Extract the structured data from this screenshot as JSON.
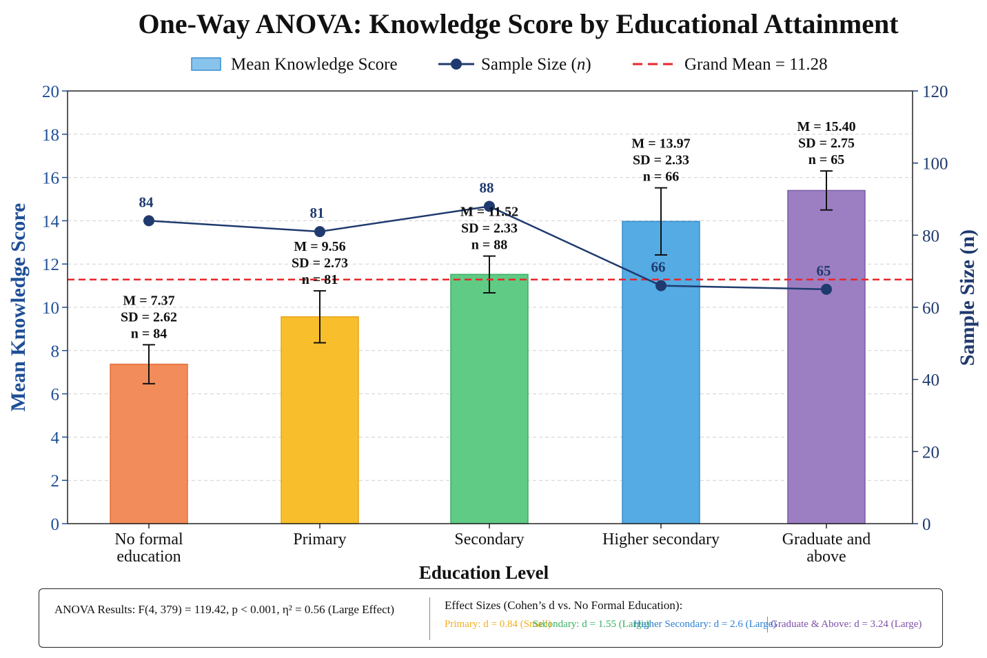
{
  "chart_data": {
    "type": "bar",
    "title": "One-Way ANOVA: Knowledge Score by Educational Attainment",
    "xlabel": "Education Level",
    "ylabel": "Mean Knowledge Score",
    "y2label": "Sample Size (n)",
    "ylim": [
      0,
      20
    ],
    "y2lim": [
      0,
      120
    ],
    "yticks": [
      0,
      2,
      4,
      6,
      8,
      10,
      12,
      14,
      16,
      18,
      20
    ],
    "y2ticks": [
      0,
      20,
      40,
      60,
      80,
      100,
      120
    ],
    "grid": true,
    "legend_position": "top",
    "legend": {
      "bar": "Mean Knowledge Score",
      "line_prefix": "Sample Size (",
      "line_var": "n",
      "line_suffix": ")",
      "grand_mean": "Grand Mean = 11.28"
    },
    "categories": [
      "No formal education",
      "Primary",
      "Secondary",
      "Higher secondary",
      "Graduate and above"
    ],
    "category_lines": [
      [
        "No formal",
        "education"
      ],
      [
        "Primary"
      ],
      [
        "Secondary"
      ],
      [
        "Higher secondary"
      ],
      [
        "Graduate and",
        "above"
      ]
    ],
    "series": [
      {
        "name": "Mean Knowledge Score",
        "type": "bar",
        "values": [
          7.37,
          9.56,
          11.52,
          13.97,
          15.4
        ],
        "sd": [
          2.62,
          2.73,
          2.33,
          2.33,
          2.75
        ],
        "n": [
          84,
          81,
          88,
          66,
          65
        ],
        "colors": [
          "#f28c5a",
          "#f9be2c",
          "#5fcb84",
          "#55abe3",
          "#9c7fc2"
        ],
        "edge_colors": [
          "#e5703a",
          "#e6a617",
          "#3fae63",
          "#3a8fcf",
          "#7d5aa8"
        ]
      },
      {
        "name": "Sample Size (n)",
        "type": "line",
        "axis": "right",
        "values": [
          84,
          81,
          88,
          66,
          65
        ],
        "color": "#1f3a6e"
      }
    ],
    "error_bar_halfwidths": [
      0.9,
      1.2,
      0.85,
      1.55,
      0.9
    ],
    "bar_labels": [
      [
        "M = 7.37",
        "SD = 2.62",
        "n = 84"
      ],
      [
        "M = 9.56",
        "SD = 2.73",
        "n = 81"
      ],
      [
        "M = 11.52",
        "SD = 2.33",
        "n = 88"
      ],
      [
        "M = 13.97",
        "SD = 2.33",
        "n = 66"
      ],
      [
        "M = 15.40",
        "SD = 2.75",
        "n = 65"
      ]
    ],
    "grand_mean": 11.28,
    "grand_mean_color": "#e8262a"
  },
  "stats_box": {
    "anova": "ANOVA Results:  F(4, 379) = 119.42, p < 0.001, η² = 0.56 (Large Effect)",
    "effect_title": "Effect Sizes (Cohen’s d vs. No Formal Education):",
    "effects": {
      "primary": "Primary: d = 0.84 (Small)",
      "secondary": "Secondary: d = 1.55 (Large)",
      "higher": "Higher Secondary: d = 2.6 (Large)",
      "graduate": "Graduate & Above: d = 3.24 (Large)"
    }
  }
}
